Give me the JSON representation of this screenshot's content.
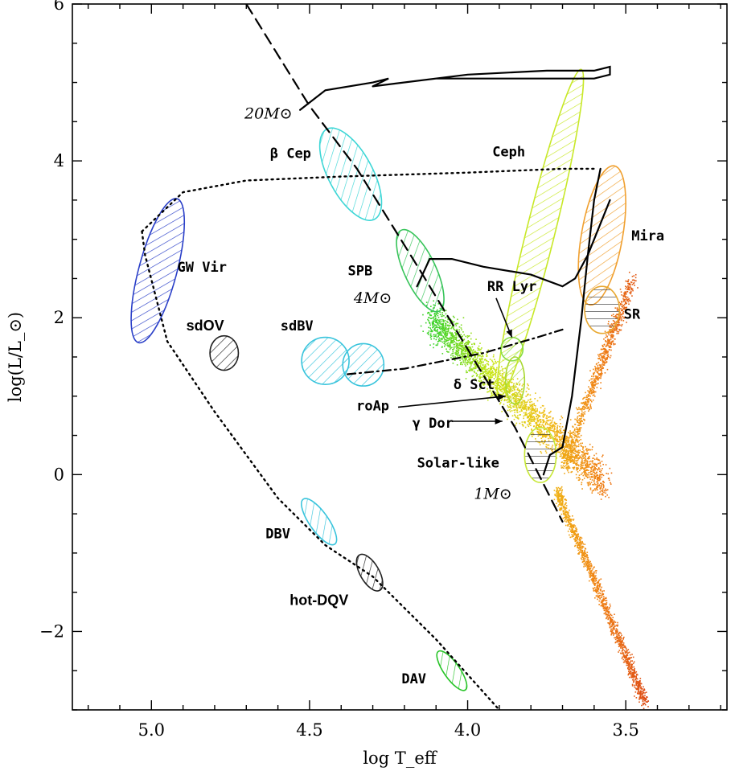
{
  "chart_data": {
    "type": "scatter",
    "title": "",
    "xlabel": "log T_eff",
    "ylabel": "log(L/L_⊙)",
    "xlim": [
      5.25,
      3.18
    ],
    "ylim": [
      -3.0,
      6.0
    ],
    "x_reversed": true,
    "x_ticks": [
      "5.0",
      "4.5",
      "4.0",
      "3.5"
    ],
    "x_tick_values": [
      5.0,
      4.5,
      4.0,
      3.5
    ],
    "y_ticks": [
      "−2",
      "0",
      "2",
      "4",
      "6"
    ],
    "y_tick_values": [
      -2,
      0,
      2,
      4,
      6
    ],
    "regions": [
      {
        "name": "GW Vir",
        "x": 4.98,
        "y": 2.6,
        "rx": 0.06,
        "ry": 0.95,
        "tilt": 15,
        "color": "#2a3fc8",
        "label": "GW Vir",
        "label_at": [
          4.84,
          2.65
        ]
      },
      {
        "name": "sdOV",
        "x": 4.77,
        "y": 1.55,
        "rx": 0.045,
        "ry": 0.22,
        "tilt": 0,
        "color": "#222222",
        "label": "sdOV",
        "label_at": [
          4.83,
          1.9
        ]
      },
      {
        "name": "sdBV (left)",
        "x": 4.45,
        "y": 1.45,
        "rx": 0.075,
        "ry": 0.3,
        "tilt": 0,
        "color": "#39c4dc",
        "label": "sdBV",
        "label_at": [
          4.54,
          1.9
        ]
      },
      {
        "name": "sdBV (right)",
        "x": 4.33,
        "y": 1.4,
        "rx": 0.065,
        "ry": 0.27,
        "tilt": 0,
        "color": "#39c4dc",
        "label": "",
        "label_at": null
      },
      {
        "name": "β Cep",
        "x": 4.37,
        "y": 3.83,
        "rx": 0.07,
        "ry": 0.65,
        "tilt": -28,
        "color": "#3dd6d6",
        "label": "β Cep",
        "label_at": [
          4.56,
          4.1
        ]
      },
      {
        "name": "SPB",
        "x": 4.15,
        "y": 2.6,
        "rx": 0.05,
        "ry": 0.57,
        "tilt": -25,
        "color": "#38c45a",
        "label": "SPB",
        "label_at": [
          4.34,
          2.6
        ]
      },
      {
        "name": "Ceph",
        "x": 3.77,
        "y": 3.08,
        "rx": 0.045,
        "ry": 2.15,
        "tilt": 14,
        "color": "#c8e828",
        "label": "Ceph",
        "label_at": [
          3.87,
          4.12
        ]
      },
      {
        "name": "Mira",
        "x": 3.575,
        "y": 3.05,
        "rx": 0.065,
        "ry": 0.9,
        "tilt": 10,
        "color": "#f0a030",
        "label": "Mira",
        "label_at": [
          3.43,
          3.05
        ]
      },
      {
        "name": "SR",
        "x": 3.575,
        "y": 2.1,
        "rx": 0.055,
        "ry": 0.3,
        "tilt": 0,
        "color": "#e8a830",
        "label": "SR",
        "label_at": [
          3.48,
          2.05
        ]
      },
      {
        "name": "RR Lyr",
        "x": 3.86,
        "y": 1.6,
        "rx": 0.035,
        "ry": 0.15,
        "tilt": 0,
        "color": "#88dd44",
        "label": "RR Lyr",
        "label_at": [
          3.86,
          2.4
        ]
      },
      {
        "name": "δ Sct",
        "x": 3.85,
        "y": 1.2,
        "rx": 0.03,
        "ry": 0.3,
        "tilt": 0,
        "color": "#a8d830",
        "label": "δ Sct",
        "label_at": [
          3.98,
          1.15
        ]
      },
      {
        "name": "Solar-like",
        "x": 3.77,
        "y": 0.25,
        "rx": 0.05,
        "ry": 0.35,
        "tilt": 0,
        "color": "#c8e838",
        "label": "Solar-like",
        "label_at": [
          4.03,
          0.15
        ]
      },
      {
        "name": "DBV",
        "x": 4.47,
        "y": -0.6,
        "rx": 0.03,
        "ry": 0.35,
        "tilt": -35,
        "color": "#39c4dc",
        "label": "DBV",
        "label_at": [
          4.6,
          -0.75
        ]
      },
      {
        "name": "hot-DQV",
        "x": 4.31,
        "y": -1.25,
        "rx": 0.03,
        "ry": 0.26,
        "tilt": -30,
        "color": "#222222",
        "label": "hot-DQV",
        "label_at": [
          4.47,
          -1.6
        ]
      },
      {
        "name": "DAV",
        "x": 4.05,
        "y": -2.5,
        "rx": 0.025,
        "ry": 0.3,
        "tilt": -35,
        "color": "#28c428",
        "label": "DAV",
        "label_at": [
          4.17,
          -2.6
        ]
      }
    ],
    "other_labels": [
      {
        "text": "roAp",
        "at": [
          4.3,
          0.88
        ]
      },
      {
        "text": "γ Dor",
        "at": [
          4.11,
          0.66
        ]
      },
      {
        "text": "20M⊙",
        "at": [
          4.63,
          4.6
        ]
      },
      {
        "text": "4M⊙",
        "at": [
          4.3,
          2.25
        ]
      },
      {
        "text": "1M⊙",
        "at": [
          3.92,
          -0.25
        ]
      }
    ],
    "curves": [
      {
        "name": "zero-age main sequence",
        "style": "dashed",
        "points": [
          [
            4.7,
            6.0
          ],
          [
            4.5,
            4.7
          ],
          [
            4.35,
            3.9
          ],
          [
            4.15,
            2.6
          ],
          [
            4.0,
            1.6
          ],
          [
            3.85,
            0.6
          ],
          [
            3.7,
            -0.6
          ]
        ]
      },
      {
        "name": "20M⊙ track",
        "style": "solid",
        "points": [
          [
            4.53,
            4.65
          ],
          [
            4.45,
            4.9
          ],
          [
            4.3,
            5.0
          ],
          [
            4.25,
            5.05
          ],
          [
            4.3,
            4.95
          ],
          [
            4.0,
            5.1
          ],
          [
            3.75,
            5.15
          ],
          [
            3.6,
            5.15
          ],
          [
            3.55,
            5.2
          ],
          [
            3.55,
            5.1
          ],
          [
            3.6,
            5.05
          ],
          [
            4.1,
            5.05
          ],
          [
            4.3,
            4.95
          ]
        ]
      },
      {
        "name": "4M⊙ track",
        "style": "solid",
        "points": [
          [
            4.16,
            2.4
          ],
          [
            4.12,
            2.75
          ],
          [
            4.05,
            2.75
          ],
          [
            3.95,
            2.65
          ],
          [
            3.8,
            2.55
          ],
          [
            3.7,
            2.4
          ],
          [
            3.66,
            2.5
          ],
          [
            3.62,
            2.8
          ],
          [
            3.58,
            3.2
          ],
          [
            3.55,
            3.5
          ]
        ]
      },
      {
        "name": "1M⊙ track",
        "style": "solid",
        "points": [
          [
            3.76,
            0.0
          ],
          [
            3.74,
            0.25
          ],
          [
            3.7,
            0.35
          ],
          [
            3.67,
            1.0
          ],
          [
            3.64,
            2.0
          ],
          [
            3.62,
            2.8
          ],
          [
            3.6,
            3.5
          ],
          [
            3.58,
            3.9
          ]
        ]
      },
      {
        "name": "white dwarf cooling sequence",
        "style": "dotted",
        "points": [
          [
            5.03,
            3.1
          ],
          [
            5.02,
            2.8
          ],
          [
            4.95,
            1.7
          ],
          [
            4.8,
            0.8
          ],
          [
            4.6,
            -0.3
          ],
          [
            4.45,
            -0.9
          ],
          [
            4.3,
            -1.3
          ],
          [
            4.1,
            -2.1
          ],
          [
            3.9,
            -3.0
          ]
        ]
      },
      {
        "name": "post-AGB / horizontal branch",
        "style": "dotted",
        "points": [
          [
            5.03,
            3.1
          ],
          [
            4.9,
            3.6
          ],
          [
            4.7,
            3.75
          ],
          [
            4.4,
            3.8
          ],
          [
            4.0,
            3.85
          ],
          [
            3.7,
            3.9
          ],
          [
            3.6,
            3.9
          ]
        ]
      },
      {
        "name": "horizontal branch segment",
        "style": "dashdot",
        "points": [
          [
            4.38,
            1.28
          ],
          [
            4.2,
            1.35
          ],
          [
            3.95,
            1.55
          ],
          [
            3.78,
            1.75
          ],
          [
            3.7,
            1.85
          ]
        ]
      }
    ],
    "scatter_clouds": [
      {
        "name": "main sequence stars",
        "x_range": [
          3.55,
          4.1
        ],
        "y_range": [
          -0.5,
          2.0
        ]
      },
      {
        "name": "red giant branch",
        "x_range": [
          3.45,
          3.7
        ],
        "y_range": [
          0.0,
          2.6
        ]
      },
      {
        "name": "lower main sequence",
        "x_range": [
          3.45,
          3.7
        ],
        "y_range": [
          -2.9,
          0.0
        ]
      }
    ],
    "legend": "none",
    "grid": false
  }
}
